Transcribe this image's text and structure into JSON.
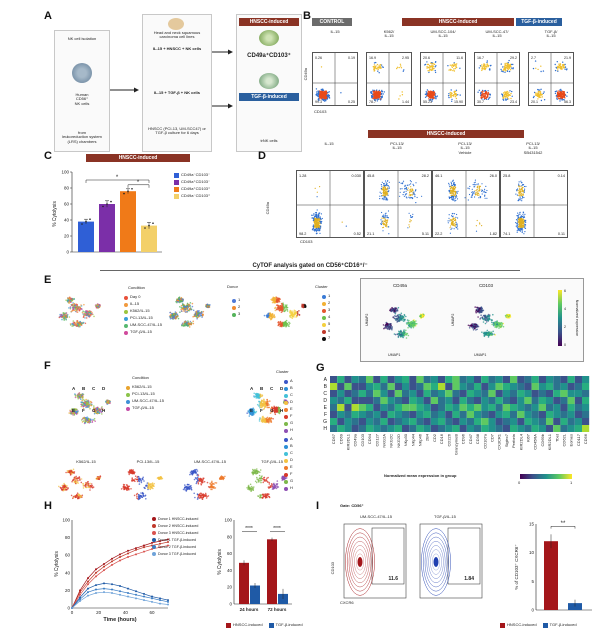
{
  "panels": {
    "A": {
      "letter": "A",
      "step1_text": "NK cell isolation",
      "step1_cells": "Human\nCD56⁺\nNK cells",
      "step1_source": "from\nleukoreduction system\n(LRS) chambers",
      "culture_header": "Head and neck squamous carcinoma cell lines",
      "culture_top": "IL-15 + HNSCC + NK cells",
      "culture_bottom": "IL-15 + TGF-β + NK cells",
      "culture_footer": "HNSCC (PCI-13, UM-SCC47) or TGF-β culture for 6 days",
      "hnscc_label": "HNSCC-induced",
      "tgf_label": "TGF-β-induced",
      "phenotype": "CD49a⁺CD103⁺",
      "result": "trNK cells"
    },
    "B": {
      "letter": "B",
      "control_label": "CONTROL",
      "hnscc_label": "HNSCC-induced",
      "tgf_label": "TGF-β-induced",
      "y_axis": "CD49a",
      "x_axis": "CD103",
      "plots": [
        {
          "title": "IL-15",
          "q": [
            "0.26",
            "0.19",
            "99.3",
            "0.25"
          ]
        },
        {
          "title": "K562/\nIL-15",
          "q": [
            "16.9",
            "2.95",
            "78.7",
            "1.44"
          ]
        },
        {
          "title": "UM-SCC-104/\nIL-15",
          "q": [
            "20.6",
            "11.6",
            "55.23",
            "15.90"
          ]
        },
        {
          "title": "UM-SCC-47/\nIL-15",
          "q": [
            "16.7",
            "29.2",
            "30.7",
            "23.4"
          ]
        },
        {
          "title": "TGF-β/\nIL-15",
          "q": [
            "2.7",
            "21.9",
            "20.1",
            "56.3"
          ]
        }
      ]
    },
    "C": {
      "letter": "C",
      "header": "HNSCC-induced",
      "ylabel": "% Cytolysis",
      "yticks": [
        "0",
        "20",
        "40",
        "60",
        "80",
        "100"
      ],
      "sig": [
        "*",
        "*"
      ],
      "legend": [
        "CD49a⁻CD103⁻",
        "CD49a⁺CD103⁻",
        "CD49a⁺CD103⁺",
        "CD49a⁻CD103⁺"
      ],
      "colors": [
        "#2f5fd6",
        "#7b2fa8",
        "#f07a18",
        "#f3d069"
      ]
    },
    "D": {
      "letter": "D",
      "header": "HNSCC-induced",
      "y_axis": "CD49a",
      "x_axis": "CD103",
      "plots": [
        {
          "title": "IL-15",
          "q": [
            "1.28",
            "0.030",
            "98.2",
            "0.52"
          ]
        },
        {
          "title": "PCI-13/\nIL-15",
          "q": [
            "45.8",
            "28.2",
            "21.1",
            "5.11"
          ]
        },
        {
          "title": "PCI-13/\nIL-15\nVehicle",
          "q": [
            "46.1",
            "26.0",
            "22.2",
            "1.82"
          ]
        },
        {
          "title": "PCI-13/\nIL-15\nSB431542",
          "q": [
            "25.8",
            "0.14",
            "74.1",
            "0.11"
          ]
        }
      ]
    },
    "E": {
      "letter": "E",
      "cytof_title": "CyTOF analysis gated on CD56⁺CD16⁺/⁻",
      "condition_title": "Condition",
      "conditions": [
        "Day 0",
        "IL-15",
        "K562/IL-15",
        "PCI-13/IL-15",
        "UM-SCC-47/IL-15",
        "TGF-β/IL-15"
      ],
      "condition_colors": [
        "#e8503a",
        "#f19a3e",
        "#9bc53d",
        "#3aa0d8",
        "#56b870",
        "#d04a9c"
      ],
      "donor_title": "Donor",
      "donors": [
        "1",
        "2",
        "3"
      ],
      "donor_colors": [
        "#4f79d6",
        "#f08a2e",
        "#55b35b"
      ],
      "cluster_title": "Cluster",
      "clusters": [
        "1",
        "2",
        "3",
        "4",
        "5",
        "6",
        "7"
      ],
      "cluster_colors": [
        "#3a7bd5",
        "#f2b134",
        "#e4572e",
        "#6cc04a",
        "#f4d03f",
        "#c0392b",
        "#111111"
      ],
      "marker_titles": [
        "CD49a",
        "CD103"
      ],
      "umap_x": "UMAP1",
      "umap_y": "UMAP2",
      "colorbar_label": "Normalized expression",
      "colorbar_ticks": [
        "0",
        "2",
        "4",
        "6"
      ]
    },
    "F": {
      "letter": "F",
      "condition_title": "Condition",
      "conditions": [
        "K562/IL-15",
        "PCI-13/IL-15",
        "UM-SCC-47/IL-15",
        "TGF-β/IL-15"
      ],
      "condition_colors": [
        "#e8a32e",
        "#8bc34a",
        "#3f8fd6",
        "#c64ea8"
      ],
      "cluster_title": "Cluster",
      "clusters": [
        "A",
        "B",
        "C",
        "D",
        "E",
        "F",
        "G",
        "H"
      ],
      "cluster_colors": [
        "#3a56c7",
        "#2c8fd6",
        "#44c1d8",
        "#f3c242",
        "#ee7a2b",
        "#d8392b",
        "#7db84a",
        "#8e4fb3"
      ],
      "sub_titles": [
        "K562/IL-15",
        "PCI-13/IL-15",
        "UM-SCC-47/IL-15",
        "TGF-β/IL-15"
      ]
    },
    "G": {
      "letter": "G",
      "rows": [
        "A",
        "B",
        "C",
        "D",
        "E",
        "F",
        "G",
        "H"
      ],
      "markers": [
        "CD57",
        "CD69",
        "KIR3DL1",
        "CD49a",
        "CD103",
        "CD94",
        "CD127",
        "NKG2A",
        "NKG2C",
        "NKG2D",
        "NKp30",
        "NKp44",
        "NKp46",
        "2B4",
        "CD2",
        "CD16",
        "CD226",
        "GranzymeB",
        "CD96",
        "CD47",
        "CD38",
        "CD107a",
        "CD7",
        "CX3CR1",
        "Siglec7",
        "Perforin",
        "KIR2DL4",
        "Ki67",
        "CD45RA",
        "CD69b",
        "KIR2DL1",
        "Tbet",
        "CD62L",
        "Eomes",
        "CD117",
        "CD56"
      ],
      "colorbar_label": "Normalized mean expression in group",
      "colorbar_ticks": [
        "0",
        "1"
      ]
    },
    "H": {
      "letter": "H",
      "line": {
        "xlabel": "Time (hours)",
        "ylabel": "% Cytolysis",
        "xticks": [
          "0",
          "20",
          "40",
          "60"
        ],
        "yticks": [
          "0",
          "20",
          "40",
          "60",
          "80",
          "100"
        ],
        "series_names": [
          "Donor 1 HNSCC-induced",
          "Donor 2 HNSCC-induced",
          "Donor 3 HNSCC-induced",
          "Donor 1 TGF-β-induced",
          "Donor 2 TGF-β-induced",
          "Donor 3 TGF-β-induced"
        ],
        "series_colors": [
          "#a4161a",
          "#c0392b",
          "#d9534f",
          "#1f5aa6",
          "#3b7dc4",
          "#6fa3d9"
        ]
      },
      "bar": {
        "ylabel": "% Cytolysis",
        "yticks": [
          "0",
          "20",
          "40",
          "60",
          "80",
          "100"
        ],
        "categories": [
          "24 hours",
          "72 hours"
        ],
        "sig": [
          "****",
          "****"
        ],
        "legend": [
          "HNSCC-induced",
          "TGF-β-induced"
        ],
        "colors": [
          "#a4161a",
          "#1f5aa6"
        ]
      }
    },
    "I": {
      "letter": "I",
      "gate": "Gate: CD56⁺",
      "plot_titles": [
        "UM-SCC-47/IL-15",
        "TGF-β/IL-15"
      ],
      "values": [
        "11.6",
        "1.84"
      ],
      "x_axis": "CXCR6",
      "y_axis": "CD103",
      "bar_ylabel": "% of CD103⁺ CXCR6⁺",
      "yticks": [
        "0",
        "5",
        "10",
        "15"
      ],
      "sig": "**",
      "legend": [
        "HNSCC-induced",
        "TGF-β-induced"
      ],
      "colors": [
        "#a4161a",
        "#1f5aa6"
      ]
    }
  },
  "chart_data": [
    {
      "type": "bar",
      "title": "",
      "categories": [
        "CD49a⁻CD103⁻",
        "CD49a⁺CD103⁻",
        "CD49a⁺CD103⁺",
        "CD49a⁻CD103⁺"
      ],
      "values": [
        38,
        60,
        76,
        33
      ],
      "errors": [
        3,
        4,
        3,
        4
      ],
      "ylabel": "% Cytolysis",
      "ylim": [
        0,
        100
      ]
    },
    {
      "type": "line",
      "xlabel": "Time (hours)",
      "ylabel": "% Cytolysis",
      "xlim": [
        0,
        72
      ],
      "ylim": [
        0,
        100
      ],
      "x": [
        0,
        6,
        12,
        18,
        24,
        30,
        36,
        42,
        48,
        54,
        60,
        66,
        72
      ],
      "series": [
        {
          "name": "Donor 1 HNSCC-induced",
          "values": [
            0,
            20,
            34,
            44,
            50,
            56,
            61,
            65,
            68,
            71,
            74,
            76,
            78
          ]
        },
        {
          "name": "Donor 2 HNSCC-induced",
          "values": [
            0,
            18,
            30,
            40,
            47,
            53,
            58,
            62,
            66,
            69,
            71,
            73,
            75
          ]
        },
        {
          "name": "Donor 3 HNSCC-induced",
          "values": [
            0,
            15,
            27,
            36,
            43,
            49,
            54,
            58,
            61,
            64,
            67,
            69,
            71
          ]
        },
        {
          "name": "Donor 1 TGF-β-induced",
          "values": [
            0,
            12,
            22,
            26,
            28,
            27,
            25,
            22,
            19,
            16,
            13,
            11,
            9
          ]
        },
        {
          "name": "Donor 2 TGF-β-induced",
          "values": [
            0,
            10,
            18,
            21,
            22,
            21,
            19,
            17,
            15,
            13,
            11,
            9,
            7
          ]
        },
        {
          "name": "Donor 3 TGF-β-induced",
          "values": [
            0,
            8,
            14,
            17,
            18,
            17,
            15,
            13,
            11,
            9,
            7,
            5,
            4
          ]
        }
      ]
    },
    {
      "type": "bar",
      "categories": [
        "24 hours",
        "72 hours"
      ],
      "series": [
        {
          "name": "HNSCC-induced",
          "values": [
            49,
            77
          ],
          "errors": [
            3,
            2
          ]
        },
        {
          "name": "TGF-β-induced",
          "values": [
            22,
            12
          ],
          "errors": [
            3,
            6
          ]
        }
      ],
      "ylabel": "% Cytolysis",
      "ylim": [
        0,
        100
      ]
    },
    {
      "type": "bar",
      "categories": [
        "HNSCC-induced",
        "TGF-β-induced"
      ],
      "values": [
        12,
        1.2
      ],
      "errors": [
        1.2,
        0.6
      ],
      "ylabel": "% of CD103⁺ CXCR6⁺",
      "ylim": [
        0,
        15
      ]
    },
    {
      "type": "heatmap",
      "rows": [
        "A",
        "B",
        "C",
        "D",
        "E",
        "F",
        "G",
        "H"
      ],
      "columns": [
        "CD57",
        "CD69",
        "KIR3DL1",
        "CD49a",
        "CD103",
        "CD94",
        "CD127",
        "NKG2A",
        "NKG2C",
        "NKG2D",
        "NKp30",
        "NKp44",
        "NKp46",
        "2B4",
        "CD2",
        "CD16",
        "CD226",
        "GranzymeB",
        "CD96",
        "CD47",
        "CD38",
        "CD107a",
        "CD7",
        "CX3CR1",
        "Siglec7",
        "Perforin",
        "KIR2DL4",
        "Ki67",
        "CD45RA",
        "CD69b",
        "KIR2DL1",
        "Tbet",
        "CD62L",
        "Eomes",
        "CD117",
        "CD56"
      ],
      "values": [
        [
          0.2,
          0.6,
          0.3,
          0.5,
          0.4,
          0.7,
          0.3,
          0.6,
          0.2,
          0.5,
          0.6,
          0.3,
          0.7,
          0.4,
          0.5,
          0.3,
          0.6,
          0.8,
          0.4,
          0.5,
          0.3,
          0.6,
          0.4,
          0.5,
          0.3,
          0.7,
          0.2,
          0.4,
          0.6,
          0.3,
          0.5,
          0.4,
          0.3,
          0.6,
          0.2,
          0.5
        ],
        [
          0.9,
          0.3,
          0.7,
          0.2,
          0.3,
          0.5,
          0.6,
          0.4,
          0.8,
          0.3,
          0.5,
          0.2,
          0.4,
          0.7,
          0.6,
          0.9,
          0.3,
          0.7,
          0.5,
          0.4,
          0.6,
          0.3,
          0.5,
          0.8,
          0.6,
          0.5,
          0.4,
          0.3,
          0.7,
          0.5,
          0.6,
          0.4,
          0.5,
          0.3,
          0.4,
          0.6
        ],
        [
          0.3,
          0.5,
          0.2,
          0.4,
          0.6,
          0.4,
          0.8,
          0.5,
          0.3,
          0.7,
          0.4,
          0.5,
          0.3,
          0.6,
          0.4,
          0.5,
          0.7,
          0.4,
          0.3,
          0.6,
          0.5,
          0.4,
          0.7,
          0.3,
          0.5,
          0.4,
          0.6,
          0.5,
          0.3,
          0.4,
          0.3,
          0.6,
          0.7,
          0.5,
          0.5,
          0.4
        ],
        [
          0.5,
          0.4,
          0.6,
          0.3,
          0.2,
          0.3,
          0.4,
          0.7,
          0.5,
          0.4,
          0.3,
          0.6,
          0.5,
          0.3,
          0.7,
          0.4,
          0.5,
          0.3,
          0.6,
          0.4,
          0.3,
          0.5,
          0.4,
          0.6,
          0.4,
          0.3,
          0.5,
          0.7,
          0.4,
          0.6,
          0.5,
          0.3,
          0.4,
          0.7,
          0.3,
          0.6
        ],
        [
          0.4,
          0.9,
          0.3,
          0.9,
          0.8,
          0.6,
          0.3,
          0.5,
          0.4,
          0.6,
          0.7,
          0.8,
          0.6,
          0.5,
          0.3,
          0.4,
          0.6,
          0.5,
          0.7,
          0.6,
          0.8,
          0.5,
          0.6,
          0.4,
          0.7,
          0.6,
          0.5,
          0.4,
          0.5,
          0.7,
          0.4,
          0.5,
          0.3,
          0.6,
          0.4,
          0.5
        ],
        [
          0.3,
          0.5,
          0.4,
          0.6,
          0.5,
          0.4,
          0.5,
          0.3,
          0.6,
          0.5,
          0.4,
          0.3,
          0.5,
          0.6,
          0.4,
          0.5,
          0.3,
          0.6,
          0.4,
          0.7,
          0.5,
          0.4,
          0.3,
          0.5,
          0.6,
          0.4,
          0.7,
          0.5,
          0.4,
          0.3,
          0.6,
          0.5,
          0.4,
          0.5,
          0.3,
          0.4
        ],
        [
          0.6,
          0.3,
          0.5,
          0.4,
          0.3,
          0.5,
          0.4,
          0.6,
          0.3,
          0.4,
          0.5,
          0.6,
          0.4,
          0.3,
          0.5,
          0.6,
          0.4,
          0.3,
          0.5,
          0.4,
          0.6,
          0.7,
          0.5,
          0.3,
          0.4,
          0.5,
          0.3,
          0.6,
          0.5,
          0.4,
          0.7,
          0.3,
          0.6,
          0.4,
          0.5,
          0.3
        ],
        [
          0.4,
          0.6,
          0.5,
          0.3,
          0.4,
          0.6,
          0.5,
          0.4,
          0.5,
          0.6,
          0.3,
          0.4,
          0.6,
          0.5,
          0.3,
          0.4,
          0.5,
          0.6,
          0.3,
          0.5,
          0.4,
          0.6,
          0.5,
          0.4,
          0.3,
          0.6,
          0.5,
          0.4,
          0.6,
          0.5,
          0.3,
          0.7,
          0.4,
          0.5,
          0.6,
          0.9
        ]
      ]
    }
  ]
}
